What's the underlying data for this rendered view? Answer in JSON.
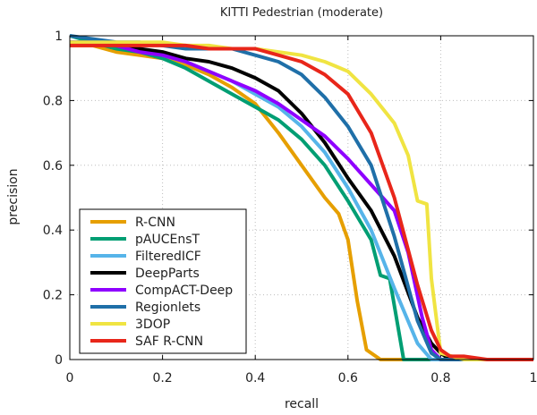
{
  "chart_data": {
    "type": "line",
    "title": "KITTI Pedestrian (moderate)",
    "xlabel": "recall",
    "ylabel": "precision",
    "xlim": [
      0,
      1
    ],
    "ylim": [
      0,
      1
    ],
    "xticks": [
      0,
      0.2,
      0.4,
      0.6,
      0.8,
      1
    ],
    "yticks": [
      0,
      0.2,
      0.4,
      0.6,
      0.8,
      1
    ],
    "xtick_labels": [
      "0",
      "0.2",
      "0.4",
      "0.6",
      "0.8",
      "1"
    ],
    "ytick_labels": [
      "0",
      "0.2",
      "0.4",
      "0.6",
      "0.8",
      "1"
    ],
    "grid": true,
    "legend_position": "bottom-left",
    "series": [
      {
        "name": "R-CNN",
        "color": "#e69f00",
        "x": [
          0,
          0.05,
          0.1,
          0.15,
          0.2,
          0.25,
          0.3,
          0.35,
          0.4,
          0.45,
          0.5,
          0.55,
          0.58,
          0.6,
          0.62,
          0.64,
          0.65,
          0.67,
          0.8,
          1.0
        ],
        "y": [
          0.97,
          0.97,
          0.95,
          0.94,
          0.93,
          0.91,
          0.88,
          0.84,
          0.79,
          0.7,
          0.6,
          0.5,
          0.45,
          0.37,
          0.18,
          0.03,
          0.02,
          0.0,
          0.0,
          0.0
        ]
      },
      {
        "name": "pAUCEnsT",
        "color": "#009e73",
        "x": [
          0,
          0.05,
          0.1,
          0.15,
          0.2,
          0.25,
          0.3,
          0.35,
          0.4,
          0.45,
          0.5,
          0.55,
          0.6,
          0.65,
          0.67,
          0.69,
          0.72,
          0.73,
          0.8,
          1.0
        ],
        "y": [
          1.0,
          0.98,
          0.96,
          0.95,
          0.93,
          0.9,
          0.86,
          0.82,
          0.78,
          0.74,
          0.68,
          0.6,
          0.49,
          0.37,
          0.26,
          0.25,
          0.0,
          0.0,
          0.0,
          0.0
        ]
      },
      {
        "name": "FilteredICF",
        "color": "#56b4e9",
        "x": [
          0,
          0.05,
          0.1,
          0.15,
          0.2,
          0.25,
          0.3,
          0.35,
          0.4,
          0.45,
          0.5,
          0.55,
          0.6,
          0.65,
          0.7,
          0.75,
          0.78,
          0.8,
          1.0
        ],
        "y": [
          0.98,
          0.98,
          0.97,
          0.96,
          0.94,
          0.92,
          0.89,
          0.86,
          0.82,
          0.78,
          0.72,
          0.64,
          0.53,
          0.4,
          0.22,
          0.05,
          0.0,
          0.0,
          0.0
        ]
      },
      {
        "name": "DeepParts",
        "color": "#000000",
        "x": [
          0,
          0.05,
          0.1,
          0.15,
          0.2,
          0.25,
          0.3,
          0.35,
          0.4,
          0.45,
          0.5,
          0.55,
          0.6,
          0.65,
          0.7,
          0.75,
          0.78,
          0.8,
          0.82,
          1.0
        ],
        "y": [
          0.98,
          0.98,
          0.97,
          0.96,
          0.95,
          0.93,
          0.92,
          0.9,
          0.87,
          0.83,
          0.76,
          0.67,
          0.56,
          0.46,
          0.32,
          0.13,
          0.05,
          0.02,
          0.0,
          0.0
        ]
      },
      {
        "name": "CompACT-Deep",
        "color": "#8f00ff",
        "x": [
          0,
          0.05,
          0.1,
          0.15,
          0.2,
          0.25,
          0.3,
          0.35,
          0.4,
          0.45,
          0.5,
          0.55,
          0.6,
          0.65,
          0.7,
          0.73,
          0.76,
          0.78,
          0.8,
          1.0
        ],
        "y": [
          0.98,
          0.98,
          0.97,
          0.95,
          0.94,
          0.92,
          0.89,
          0.86,
          0.83,
          0.79,
          0.74,
          0.69,
          0.62,
          0.54,
          0.46,
          0.33,
          0.13,
          0.03,
          0.0,
          0.0
        ]
      },
      {
        "name": "Regionlets",
        "color": "#1f6fa8",
        "x": [
          0,
          0.05,
          0.1,
          0.15,
          0.2,
          0.25,
          0.3,
          0.35,
          0.4,
          0.45,
          0.5,
          0.55,
          0.6,
          0.65,
          0.7,
          0.75,
          0.78,
          0.8,
          1.0
        ],
        "y": [
          1.0,
          0.99,
          0.98,
          0.98,
          0.97,
          0.96,
          0.96,
          0.96,
          0.94,
          0.92,
          0.88,
          0.81,
          0.72,
          0.6,
          0.38,
          0.12,
          0.02,
          0.0,
          0.0
        ]
      },
      {
        "name": "3DOP",
        "color": "#f0e442",
        "x": [
          0,
          0.05,
          0.1,
          0.15,
          0.2,
          0.25,
          0.3,
          0.35,
          0.4,
          0.45,
          0.5,
          0.55,
          0.6,
          0.65,
          0.7,
          0.73,
          0.75,
          0.77,
          0.78,
          0.8,
          0.85,
          1.0
        ],
        "y": [
          0.98,
          0.98,
          0.98,
          0.98,
          0.98,
          0.97,
          0.97,
          0.96,
          0.96,
          0.95,
          0.94,
          0.92,
          0.89,
          0.82,
          0.73,
          0.63,
          0.49,
          0.48,
          0.25,
          0.02,
          0.0,
          0.0
        ]
      },
      {
        "name": "SAF R-CNN",
        "color": "#e8261a",
        "x": [
          0,
          0.05,
          0.1,
          0.15,
          0.2,
          0.25,
          0.3,
          0.35,
          0.4,
          0.45,
          0.5,
          0.55,
          0.6,
          0.65,
          0.7,
          0.75,
          0.78,
          0.8,
          0.82,
          0.85,
          0.9,
          1.0
        ],
        "y": [
          0.97,
          0.97,
          0.97,
          0.97,
          0.97,
          0.97,
          0.96,
          0.96,
          0.96,
          0.94,
          0.92,
          0.88,
          0.82,
          0.7,
          0.5,
          0.23,
          0.09,
          0.03,
          0.01,
          0.01,
          0.0,
          0.0
        ]
      }
    ]
  }
}
